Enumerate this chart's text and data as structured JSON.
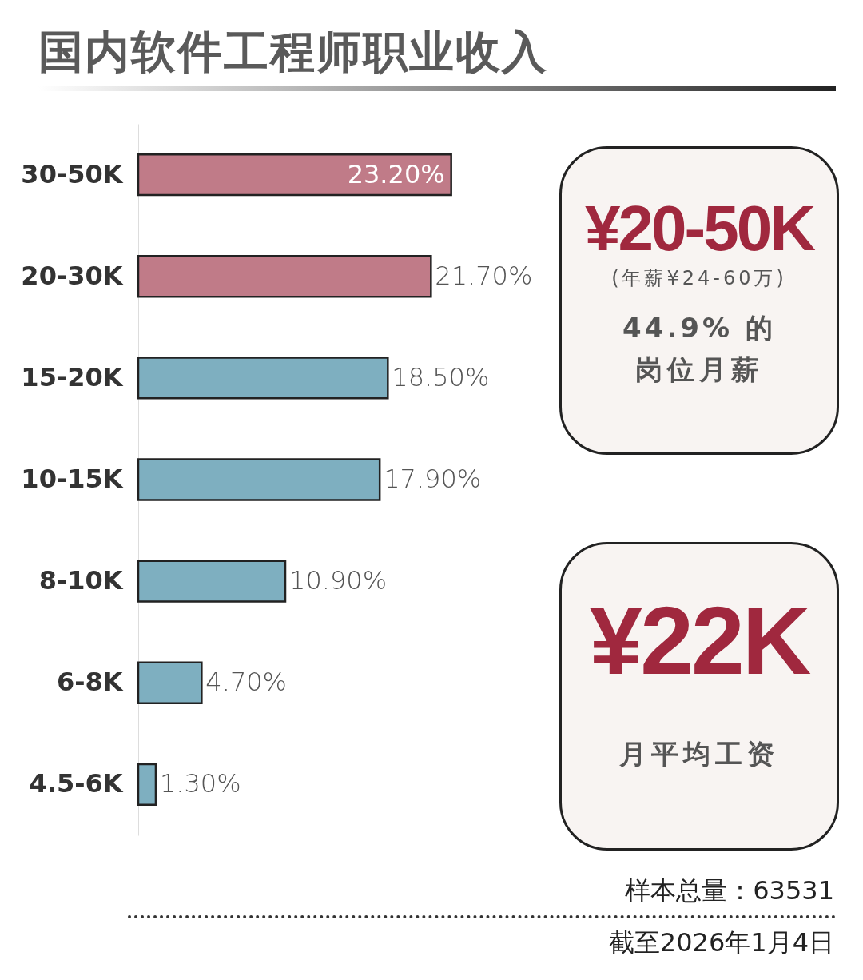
{
  "chart_data": {
    "type": "bar",
    "orientation": "horizontal",
    "title": "国内软件工程师职业收入",
    "categories": [
      "30-50K",
      "20-30K",
      "15-20K",
      "10-15K",
      "8-10K",
      "6-8K",
      "4.5-6K"
    ],
    "values": [
      23.2,
      21.7,
      18.5,
      17.9,
      10.9,
      4.7,
      1.3
    ],
    "colors": [
      "#c07b88",
      "#c07b88",
      "#7eafc0",
      "#7eafc0",
      "#7eafc0",
      "#7eafc0",
      "#7eafc0"
    ],
    "value_labels": [
      "23.20%",
      "21.70%",
      "18.50%",
      "17.90%",
      "10.90%",
      "4.70%",
      "1.30%"
    ],
    "annotations": [
      "¥20-50K",
      "(年薪¥24-60万)",
      "44.9% 的",
      "岗位月薪",
      "¥22K",
      "月平均工资",
      "样本总量：63531",
      "截至2026年1月4日"
    ],
    "grid": false
  }
}
